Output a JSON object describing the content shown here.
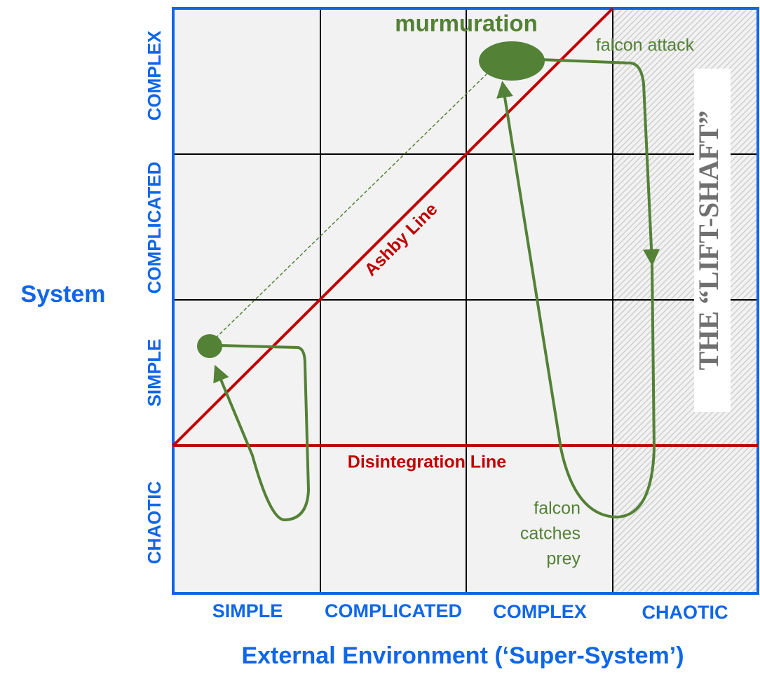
{
  "axes": {
    "y_title": "System",
    "y_labels": [
      "COMPLEX",
      "COMPLICATED",
      "SIMPLE",
      "CHAOTIC"
    ],
    "x_title": "External Environment (‘Super-System’)",
    "x_labels": [
      "SIMPLE",
      "COMPLICATED",
      "COMPLEX",
      "CHAOTIC"
    ]
  },
  "annotations": {
    "murmuration": "murmuration",
    "falcon_attack": "falcon attack",
    "ashby_line": "Ashby Line",
    "disintegration_line": "Disintegration Line",
    "falcon_catches_prey": [
      "falcon",
      "catches",
      "prey"
    ],
    "lift_shaft": "THE “LIFT-SHAFT”"
  }
}
